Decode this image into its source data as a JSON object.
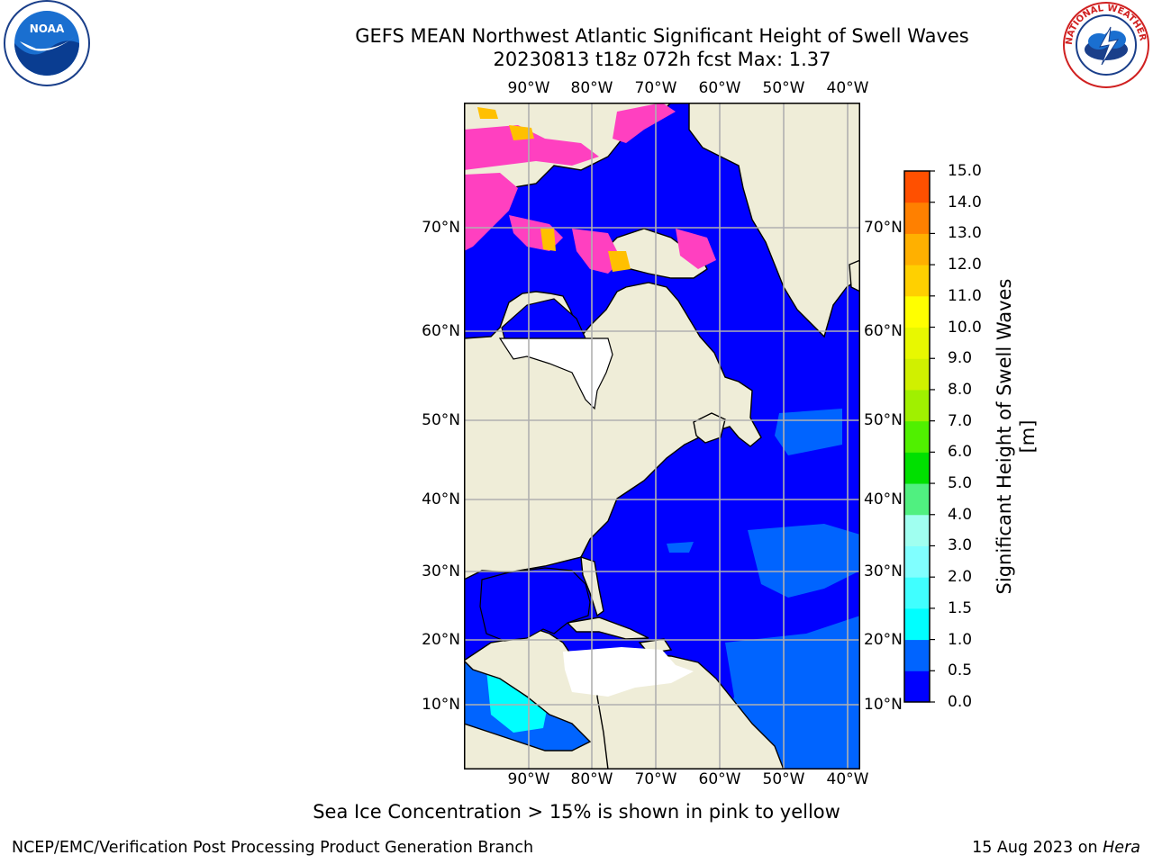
{
  "title_line1": "GEFS MEAN Northwest Atlantic Significant Height of Swell Waves",
  "title_line2": "20230813 t18z 072h fcst   Max: 1.37",
  "lon_ticks": [
    "90°W",
    "80°W",
    "70°W",
    "60°W",
    "50°W",
    "40°W"
  ],
  "lat_ticks": [
    "70°N",
    "60°N",
    "50°N",
    "40°N",
    "30°N",
    "20°N",
    "10°N"
  ],
  "colorbar": {
    "label": "Significant Height of Swell Waves [m]",
    "ticks": [
      "0.0",
      "0.5",
      "1.0",
      "1.5",
      "2.0",
      "3.0",
      "4.0",
      "5.0",
      "6.0",
      "7.0",
      "8.0",
      "9.0",
      "10.0",
      "11.0",
      "12.0",
      "13.0",
      "14.0",
      "15.0"
    ],
    "colors": [
      "#0000ff",
      "#0064ff",
      "#00ffff",
      "#40ffff",
      "#80ffff",
      "#a0fff0",
      "#50f080",
      "#00e000",
      "#50f000",
      "#a0f000",
      "#d0f000",
      "#e8f800",
      "#ffff00",
      "#ffd000",
      "#ffb000",
      "#ff8000",
      "#ff5000",
      "#ff2000",
      "#ff0000"
    ]
  },
  "colors": {
    "land": "#efedd8",
    "ocean_low": "#0000ff",
    "ocean_mid": "#0064ff",
    "ocean_high": "#00ffff",
    "ice_pink": "#ff40c0",
    "ice_yellow": "#ffc000",
    "grid": "#b0b0b0"
  },
  "footnote": "Sea Ice Concentration > 15% is shown in pink to yellow",
  "credit": "NCEP/EMC/Verification Post Processing Product Generation Branch",
  "date_stamp": "15 Aug 2023 on",
  "date_stamp_host": "Hera",
  "logos": {
    "left_text": "NOAA",
    "right_text": "NATIONAL WEATHER SERVICE"
  }
}
